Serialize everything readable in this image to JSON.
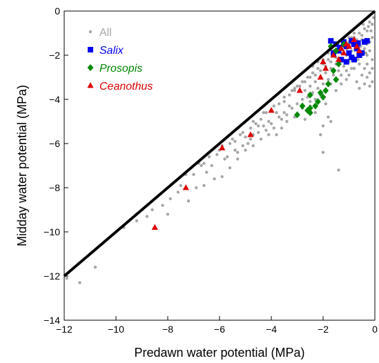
{
  "chart_data": {
    "type": "scatter",
    "title": "",
    "xlabel": "Predawn water potential (MPa)",
    "ylabel": "Midday water potential (MPa)",
    "xlim": [
      -12,
      0
    ],
    "ylim": [
      -14,
      0
    ],
    "x_ticks": [
      -12,
      -10,
      -8,
      -6,
      -4,
      -2,
      0
    ],
    "x_tick_labels": [
      "−12",
      "−10",
      "−8",
      "−6",
      "−4",
      "−2",
      "0"
    ],
    "y_ticks": [
      -14,
      -12,
      -10,
      -8,
      -6,
      -4,
      -2,
      0
    ],
    "y_tick_labels": [
      "−14",
      "−12",
      "−10",
      "−8",
      "−6",
      "−4",
      "−2",
      "0"
    ],
    "grid": false,
    "legend_position": "top-left",
    "reference_line": {
      "x": [
        -12,
        0
      ],
      "y": [
        -12,
        0
      ],
      "color": "#000000"
    },
    "series": [
      {
        "name": "All",
        "marker": "circle",
        "color": "#a6a6a6",
        "points": [
          [
            -11.4,
            -12.3
          ],
          [
            -10.8,
            -11.6
          ],
          [
            -11.9,
            -12.1
          ],
          [
            -9.7,
            -9.8
          ],
          [
            -9.2,
            -9.5
          ],
          [
            -8.8,
            -9.3
          ],
          [
            -8.6,
            -9.0
          ],
          [
            -8.2,
            -8.8
          ],
          [
            -7.9,
            -8.5
          ],
          [
            -7.5,
            -7.9
          ],
          [
            -7.3,
            -7.4
          ],
          [
            -7.0,
            -7.4
          ],
          [
            -6.8,
            -6.9
          ],
          [
            -6.6,
            -6.9
          ],
          [
            -6.5,
            -7.3
          ],
          [
            -6.3,
            -7.0
          ],
          [
            -6.1,
            -6.5
          ],
          [
            -6.0,
            -6.3
          ],
          [
            -5.8,
            -6.7
          ],
          [
            -5.6,
            -6.0
          ],
          [
            -5.4,
            -5.9
          ],
          [
            -5.3,
            -6.4
          ],
          [
            -5.2,
            -5.6
          ],
          [
            -5.0,
            -5.7
          ],
          [
            -4.9,
            -6.0
          ],
          [
            -4.8,
            -5.3
          ],
          [
            -4.7,
            -5.6
          ],
          [
            -4.6,
            -5.1
          ],
          [
            -4.5,
            -5.5
          ],
          [
            -4.4,
            -4.9
          ],
          [
            -4.3,
            -5.2
          ],
          [
            -4.2,
            -4.6
          ],
          [
            -4.1,
            -5.0
          ],
          [
            -4.0,
            -4.5
          ],
          [
            -3.9,
            -5.3
          ],
          [
            -3.8,
            -4.6
          ],
          [
            -3.7,
            -4.2
          ],
          [
            -3.6,
            -4.9
          ],
          [
            -3.5,
            -4.1
          ],
          [
            -3.4,
            -4.7
          ],
          [
            -3.3,
            -3.8
          ],
          [
            -3.2,
            -4.4
          ],
          [
            -3.1,
            -3.6
          ],
          [
            -3.0,
            -4.2
          ],
          [
            -2.9,
            -3.4
          ],
          [
            -2.8,
            -4.0
          ],
          [
            -2.7,
            -3.2
          ],
          [
            -2.6,
            -3.9
          ],
          [
            -2.5,
            -3.0
          ],
          [
            -2.4,
            -3.7
          ],
          [
            -2.3,
            -2.9
          ],
          [
            -2.2,
            -3.5
          ],
          [
            -2.1,
            -2.7
          ],
          [
            -2.0,
            -3.3
          ],
          [
            -1.9,
            -2.5
          ],
          [
            -1.8,
            -3.1
          ],
          [
            -1.7,
            -2.3
          ],
          [
            -1.6,
            -2.9
          ],
          [
            -1.5,
            -2.1
          ],
          [
            -1.4,
            -2.7
          ],
          [
            -1.3,
            -1.9
          ],
          [
            -1.2,
            -2.5
          ],
          [
            -1.1,
            -1.7
          ],
          [
            -1.0,
            -2.3
          ],
          [
            -0.9,
            -1.5
          ],
          [
            -0.8,
            -2.1
          ],
          [
            -0.7,
            -1.3
          ],
          [
            -0.6,
            -1.9
          ],
          [
            -0.5,
            -1.1
          ],
          [
            -0.4,
            -1.7
          ],
          [
            -0.3,
            -0.9
          ],
          [
            -0.2,
            -1.4
          ],
          [
            -0.1,
            -0.6
          ],
          [
            -0.05,
            -0.3
          ],
          [
            -0.2,
            -0.5
          ],
          [
            -0.4,
            -0.8
          ],
          [
            -0.6,
            -1.0
          ],
          [
            -0.8,
            -1.2
          ],
          [
            -1.0,
            -1.4
          ],
          [
            -1.2,
            -1.6
          ],
          [
            -1.4,
            -1.8
          ],
          [
            -1.6,
            -2.0
          ],
          [
            -1.8,
            -2.2
          ],
          [
            -2.0,
            -2.4
          ],
          [
            -2.2,
            -2.6
          ],
          [
            -2.4,
            -2.8
          ],
          [
            -2.6,
            -3.0
          ],
          [
            -2.8,
            -3.2
          ],
          [
            -3.0,
            -3.4
          ],
          [
            -3.2,
            -3.6
          ],
          [
            -0.3,
            -2.4
          ],
          [
            -0.2,
            -2.8
          ],
          [
            -0.4,
            -2.6
          ],
          [
            -0.6,
            -2.4
          ],
          [
            -0.1,
            -2.2
          ],
          [
            -0.5,
            -2.9
          ],
          [
            -0.3,
            -3.0
          ],
          [
            -0.8,
            -2.6
          ],
          [
            -1.0,
            -2.9
          ],
          [
            -0.7,
            -3.2
          ],
          [
            -0.2,
            -1.8
          ],
          [
            -0.1,
            -1.2
          ],
          [
            -0.3,
            -1.5
          ],
          [
            -0.5,
            -1.3
          ],
          [
            -0.15,
            -0.9
          ],
          [
            -0.25,
            -0.7
          ],
          [
            -0.45,
            -0.6
          ],
          [
            -0.35,
            -1.9
          ],
          [
            -0.55,
            -1.6
          ],
          [
            -0.65,
            -2.2
          ],
          [
            -2.0,
            -5.2
          ],
          [
            -2.1,
            -5.6
          ],
          [
            -2.0,
            -6.4
          ],
          [
            -1.8,
            -4.8
          ],
          [
            -2.3,
            -4.6
          ],
          [
            -1.4,
            -7.2
          ],
          [
            -1.7,
            -5.0
          ],
          [
            -1.5,
            -3.6
          ],
          [
            -1.3,
            -3.3
          ],
          [
            -1.1,
            -3.1
          ],
          [
            -1.9,
            -4.2
          ],
          [
            -2.5,
            -4.3
          ],
          [
            -2.7,
            -4.9
          ],
          [
            -3.1,
            -4.8
          ],
          [
            -3.4,
            -5.0
          ],
          [
            -3.6,
            -5.3
          ],
          [
            -3.8,
            -5.6
          ],
          [
            -4.1,
            -5.6
          ],
          [
            -4.4,
            -5.8
          ],
          [
            -4.7,
            -6.1
          ],
          [
            -5.0,
            -6.3
          ],
          [
            -5.3,
            -6.7
          ],
          [
            -5.6,
            -7.1
          ],
          [
            -5.9,
            -7.5
          ],
          [
            -6.2,
            -7.6
          ],
          [
            -6.6,
            -7.9
          ],
          [
            -6.9,
            -8.0
          ],
          [
            -7.2,
            -8.6
          ],
          [
            -7.6,
            -8.2
          ],
          [
            -8.0,
            -9.2
          ],
          [
            -6.4,
            -6.6
          ],
          [
            -6.7,
            -7.0
          ],
          [
            -5.9,
            -6.1
          ],
          [
            -5.5,
            -5.8
          ],
          [
            -5.1,
            -5.5
          ],
          [
            -4.7,
            -5.0
          ],
          [
            -4.3,
            -4.6
          ],
          [
            -3.9,
            -4.3
          ],
          [
            -3.5,
            -3.9
          ],
          [
            -3.1,
            -3.5
          ],
          [
            -2.7,
            -3.6
          ],
          [
            -2.5,
            -3.4
          ],
          [
            -2.3,
            -3.2
          ],
          [
            -2.1,
            -3.0
          ],
          [
            -1.9,
            -2.8
          ],
          [
            -1.7,
            -2.6
          ],
          [
            -1.5,
            -2.4
          ],
          [
            -1.3,
            -2.2
          ],
          [
            -1.1,
            -2.0
          ],
          [
            -0.9,
            -1.8
          ],
          [
            -2.6,
            -2.6
          ],
          [
            -2.4,
            -2.5
          ],
          [
            -2.2,
            -2.3
          ],
          [
            -2.0,
            -2.2
          ],
          [
            -1.8,
            -1.9
          ],
          [
            -1.6,
            -1.8
          ],
          [
            -1.4,
            -1.6
          ],
          [
            -1.2,
            -1.4
          ],
          [
            -1.0,
            -1.2
          ],
          [
            -0.8,
            -1.0
          ],
          [
            -3.3,
            -4.3
          ],
          [
            -3.5,
            -4.6
          ],
          [
            -3.7,
            -4.8
          ],
          [
            -4.0,
            -5.1
          ],
          [
            -4.2,
            -5.4
          ],
          [
            -4.5,
            -5.2
          ],
          [
            -4.8,
            -5.8
          ],
          [
            -5.1,
            -6.1
          ],
          [
            -5.4,
            -6.3
          ],
          [
            -5.7,
            -6.6
          ],
          [
            -0.9,
            -2.6
          ],
          [
            -1.1,
            -2.7
          ],
          [
            -1.3,
            -2.9
          ],
          [
            -1.5,
            -3.1
          ],
          [
            -1.7,
            -3.3
          ],
          [
            -1.9,
            -3.6
          ],
          [
            -2.1,
            -3.8
          ],
          [
            -2.3,
            -4.0
          ],
          [
            -2.5,
            -4.1
          ],
          [
            -2.8,
            -4.4
          ],
          [
            -0.1,
            -3.2
          ],
          [
            -0.2,
            -3.4
          ],
          [
            -0.4,
            -3.3
          ],
          [
            -0.6,
            -3.5
          ],
          [
            -0.1,
            -2.6
          ],
          [
            -0.3,
            -2.0
          ],
          [
            -0.5,
            -2.0
          ],
          [
            -0.7,
            -1.6
          ],
          [
            -0.9,
            -1.2
          ],
          [
            -1.1,
            -1.5
          ]
        ]
      },
      {
        "name": "Salix",
        "marker": "square",
        "color": "#0000ee",
        "points": [
          [
            -1.7,
            -1.35
          ],
          [
            -1.5,
            -1.5
          ],
          [
            -1.4,
            -1.8
          ],
          [
            -1.3,
            -2.2
          ],
          [
            -1.2,
            -1.4
          ],
          [
            -1.1,
            -1.6
          ],
          [
            -1.0,
            -1.9
          ],
          [
            -0.9,
            -2.1
          ],
          [
            -0.8,
            -1.5
          ],
          [
            -0.7,
            -1.7
          ],
          [
            -0.6,
            -2.0
          ],
          [
            -0.5,
            -1.9
          ],
          [
            -0.4,
            -1.4
          ],
          [
            -0.3,
            -1.35
          ],
          [
            -0.9,
            -1.35
          ],
          [
            -1.1,
            -2.3
          ],
          [
            -0.8,
            -2.2
          ],
          [
            -1.6,
            -1.9
          ],
          [
            -0.65,
            -1.45
          ],
          [
            -1.35,
            -1.65
          ]
        ]
      },
      {
        "name": "Prosopis",
        "marker": "diamond",
        "color": "#008800",
        "points": [
          [
            -3.0,
            -4.7
          ],
          [
            -2.8,
            -4.3
          ],
          [
            -2.5,
            -4.6
          ],
          [
            -2.5,
            -4.4
          ],
          [
            -2.5,
            -3.8
          ],
          [
            -2.3,
            -4.3
          ],
          [
            -2.2,
            -4.1
          ],
          [
            -2.1,
            -3.7
          ],
          [
            -2.0,
            -3.9
          ],
          [
            -1.9,
            -3.6
          ],
          [
            -1.6,
            -2.7
          ],
          [
            -1.5,
            -3.1
          ],
          [
            -1.4,
            -2.4
          ],
          [
            -1.2,
            -1.5
          ],
          [
            -1.5,
            -1.8
          ],
          [
            -1.7,
            -1.6
          ],
          [
            -2.6,
            -4.5
          ],
          [
            -1.8,
            -3.3
          ]
        ]
      },
      {
        "name": "Ceanothus",
        "marker": "triangle",
        "color": "#dd0000",
        "points": [
          [
            -8.5,
            -9.8
          ],
          [
            -7.3,
            -8.0
          ],
          [
            -5.9,
            -6.2
          ],
          [
            -4.8,
            -5.6
          ],
          [
            -4.0,
            -4.5
          ],
          [
            -2.9,
            -3.6
          ],
          [
            -2.1,
            -3.0
          ],
          [
            -2.0,
            -2.3
          ],
          [
            -1.9,
            -2.6
          ],
          [
            -1.6,
            -2.0
          ],
          [
            -1.4,
            -2.2
          ],
          [
            -1.3,
            -1.7
          ],
          [
            -1.2,
            -1.9
          ],
          [
            -1.1,
            -1.5
          ],
          [
            -1.0,
            -1.6
          ],
          [
            -0.8,
            -1.3
          ],
          [
            -0.7,
            -1.6
          ],
          [
            -0.6,
            -1.8
          ]
        ]
      }
    ]
  }
}
